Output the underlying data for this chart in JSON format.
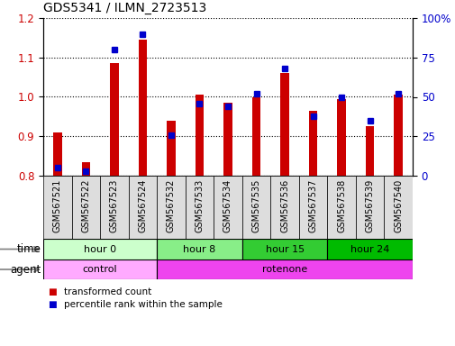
{
  "title": "GDS5341 / ILMN_2723513",
  "samples": [
    "GSM567521",
    "GSM567522",
    "GSM567523",
    "GSM567524",
    "GSM567532",
    "GSM567533",
    "GSM567534",
    "GSM567535",
    "GSM567536",
    "GSM567537",
    "GSM567538",
    "GSM567539",
    "GSM567540"
  ],
  "red_values": [
    0.91,
    0.835,
    1.085,
    1.145,
    0.94,
    1.005,
    0.985,
    1.0,
    1.06,
    0.965,
    0.995,
    0.925,
    1.005
  ],
  "blue_values": [
    5,
    3,
    80,
    90,
    26,
    46,
    44,
    52,
    68,
    38,
    50,
    35,
    52
  ],
  "ylim_left": [
    0.8,
    1.2
  ],
  "ylim_right": [
    0,
    100
  ],
  "yticks_left": [
    0.8,
    0.9,
    1.0,
    1.1,
    1.2
  ],
  "yticks_right": [
    0,
    25,
    50,
    75,
    100
  ],
  "ytick_labels_right": [
    "0",
    "25",
    "50",
    "75",
    "100%"
  ],
  "bar_color": "#cc0000",
  "dot_color": "#0000cc",
  "time_groups": [
    {
      "label": "hour 0",
      "start": 0,
      "end": 4,
      "color": "#ccffcc"
    },
    {
      "label": "hour 8",
      "start": 4,
      "end": 7,
      "color": "#88ee88"
    },
    {
      "label": "hour 15",
      "start": 7,
      "end": 10,
      "color": "#33cc33"
    },
    {
      "label": "hour 24",
      "start": 10,
      "end": 13,
      "color": "#00bb00"
    }
  ],
  "agent_groups": [
    {
      "label": "control",
      "start": 0,
      "end": 4,
      "color": "#ffaaff"
    },
    {
      "label": "rotenone",
      "start": 4,
      "end": 13,
      "color": "#ee44ee"
    }
  ],
  "legend_red": "transformed count",
  "legend_blue": "percentile rank within the sample",
  "time_label": "time",
  "agent_label": "agent",
  "tick_label_color_left": "#cc0000",
  "tick_label_color_right": "#0000cc",
  "sample_bg_color": "#dddddd",
  "bar_width": 0.3,
  "dot_size": 5
}
